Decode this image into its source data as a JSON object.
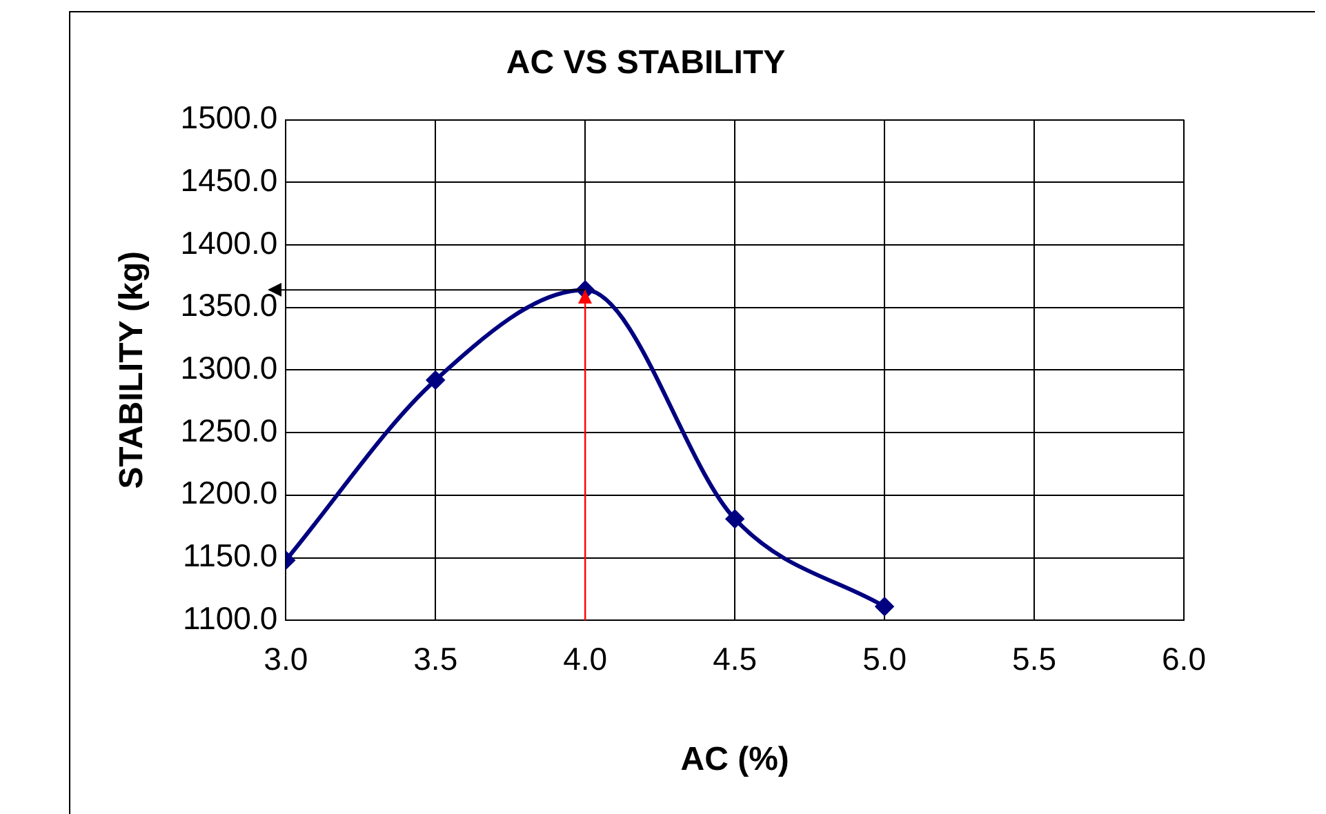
{
  "chart_data": {
    "type": "line",
    "title": "AC VS STABILITY",
    "xlabel": "AC (%)",
    "ylabel": "STABILITY (kg)",
    "x": [
      3.0,
      3.5,
      4.0,
      4.5,
      5.0
    ],
    "series": [
      {
        "color": "#000080",
        "values": [
          1148,
          1292,
          1364,
          1181,
          1111
        ]
      }
    ],
    "xlim": [
      3.0,
      6.0
    ],
    "xticks": [
      {
        "value": 3.0,
        "label": "3.0"
      },
      {
        "value": 3.5,
        "label": "3.5"
      },
      {
        "value": 4.0,
        "label": "4.0"
      },
      {
        "value": 4.5,
        "label": "4.5"
      },
      {
        "value": 5.0,
        "label": "5.0"
      },
      {
        "value": 5.5,
        "label": "5.5"
      },
      {
        "value": 6.0,
        "label": "6.0"
      }
    ],
    "ylim": [
      1100,
      1500
    ],
    "yticks": [
      {
        "value": 1100,
        "label": "1100.0"
      },
      {
        "value": 1150,
        "label": "1150.0"
      },
      {
        "value": 1200,
        "label": "1200.0"
      },
      {
        "value": 1250,
        "label": "1250.0"
      },
      {
        "value": 1300,
        "label": "1300.0"
      },
      {
        "value": 1350,
        "label": "1350.0"
      },
      {
        "value": 1400,
        "label": "1400.0"
      },
      {
        "value": 1450,
        "label": "1450.0"
      },
      {
        "value": 1500,
        "label": "1500.0"
      }
    ],
    "ref_lines": [
      {
        "axis": "x",
        "value": 4.0,
        "color": "#ff0000"
      },
      {
        "axis": "y",
        "value": 1364,
        "color": "#000000"
      }
    ],
    "grid": true,
    "marker": "diamond",
    "line_style": "solid",
    "legend": false
  }
}
